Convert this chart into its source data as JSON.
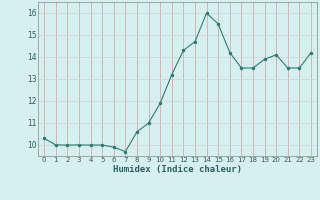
{
  "x": [
    0,
    1,
    2,
    3,
    4,
    5,
    6,
    7,
    8,
    9,
    10,
    11,
    12,
    13,
    14,
    15,
    16,
    17,
    18,
    19,
    20,
    21,
    22,
    23
  ],
  "y": [
    10.3,
    10.0,
    10.0,
    10.0,
    10.0,
    10.0,
    9.9,
    9.7,
    10.6,
    11.0,
    11.9,
    13.2,
    14.3,
    14.7,
    16.0,
    15.5,
    14.2,
    13.5,
    13.5,
    13.9,
    14.1,
    13.5,
    13.5,
    14.2
  ],
  "xlabel": "Humidex (Indice chaleur)",
  "ylabel": "",
  "xlim": [
    -0.5,
    23.5
  ],
  "ylim": [
    9.5,
    16.5
  ],
  "yticks": [
    10,
    11,
    12,
    13,
    14,
    15,
    16
  ],
  "xticks": [
    0,
    1,
    2,
    3,
    4,
    5,
    6,
    7,
    8,
    9,
    10,
    11,
    12,
    13,
    14,
    15,
    16,
    17,
    18,
    19,
    20,
    21,
    22,
    23
  ],
  "line_color": "#2e7d6e",
  "marker_color": "#2e7d6e",
  "bg_color": "#d6f0ef",
  "grid_color": "#c0dedd",
  "grid_color_major": "#b8c8c8"
}
